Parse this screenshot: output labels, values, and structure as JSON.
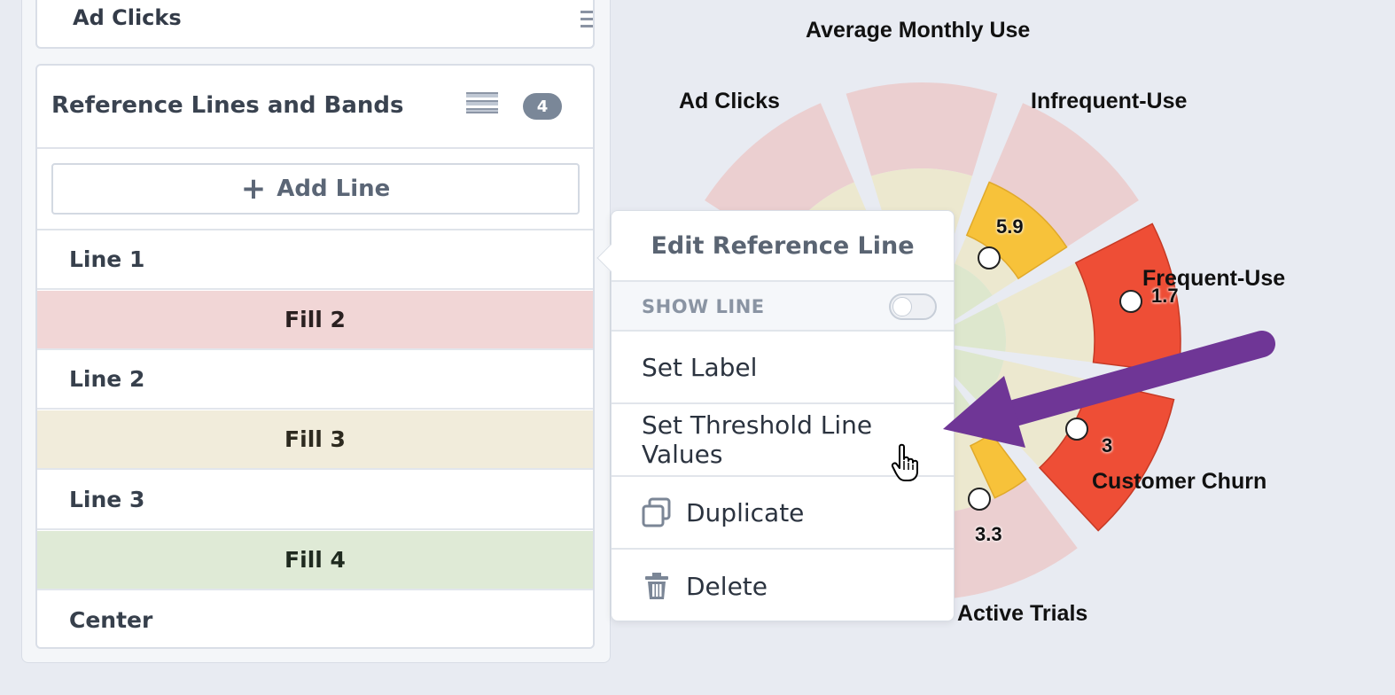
{
  "sidebar": {
    "top_card_title": "Ad Clicks",
    "ref_section": {
      "title": "Reference Lines and Bands",
      "count": "4",
      "add_button": "Add Line",
      "rows": [
        {
          "label": "Line 1",
          "kind": "line"
        },
        {
          "label": "Fill 2",
          "kind": "fill2"
        },
        {
          "label": "Line 2",
          "kind": "line"
        },
        {
          "label": "Fill 3",
          "kind": "fill3"
        },
        {
          "label": "Line 3",
          "kind": "line"
        },
        {
          "label": "Fill 4",
          "kind": "fill4"
        },
        {
          "label": "Center",
          "kind": "line"
        }
      ]
    }
  },
  "chart": {
    "categories": {
      "average_monthly_use": "Average Monthly Use",
      "ad_clicks": "Ad Clicks",
      "infrequent_use": "Infrequent-Use",
      "frequent_use": "Frequent-Use",
      "customer_churn": "Customer Churn",
      "active_trials": "Active Trials"
    },
    "values": {
      "infrequent_use": "5.9",
      "frequent_use": "1.7",
      "customer_churn": "3",
      "active_trials": "3.3"
    },
    "colors": {
      "band_outer": "#ebcfd0",
      "band_mid": "#ece8cf",
      "band_inner": "#dde7cd",
      "yellow": "#f7c23a",
      "red": "#ee4e36",
      "arrow": "#6f3696"
    }
  },
  "popover": {
    "title": "Edit Reference Line",
    "show_line_label": "SHOW LINE",
    "show_line_on": false,
    "items": {
      "set_label": "Set Label",
      "set_threshold": "Set Threshold Line Values",
      "duplicate": "Duplicate",
      "delete": "Delete"
    },
    "icons": {
      "duplicate": "duplicate-icon",
      "delete": "trash-icon",
      "add": "plus-icon",
      "cursor": "hand-pointer-icon"
    }
  }
}
